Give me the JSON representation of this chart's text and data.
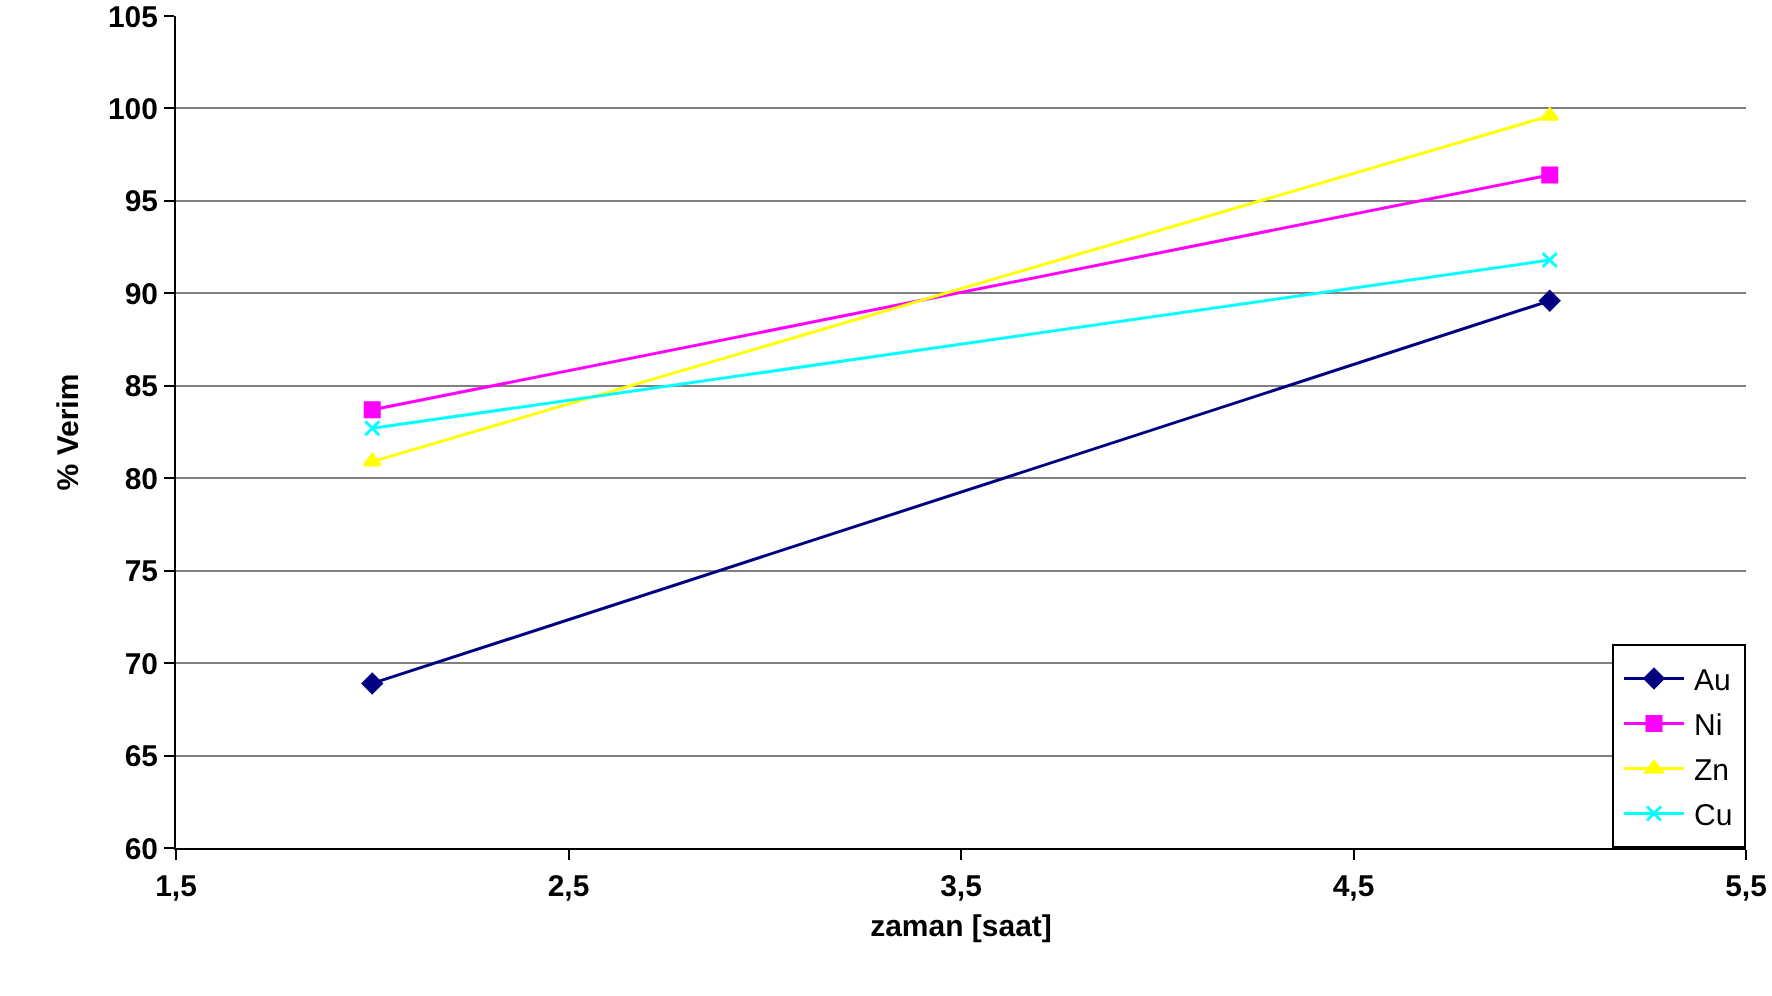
{
  "chart_data": {
    "type": "line",
    "xlabel": "zaman [saat]",
    "ylabel": "% Verim",
    "x": [
      2,
      5
    ],
    "series": [
      {
        "name": "Au",
        "color": "#000080",
        "values": [
          68.9,
          89.6
        ],
        "marker": "diamond"
      },
      {
        "name": "Ni",
        "color": "#ff00ff",
        "values": [
          83.7,
          96.4
        ],
        "marker": "square"
      },
      {
        "name": "Zn",
        "color": "#ffff00",
        "values": [
          80.9,
          99.6
        ],
        "marker": "triangle"
      },
      {
        "name": "Cu",
        "color": "#00ffff",
        "values": [
          82.7,
          91.8
        ],
        "marker": "cross"
      }
    ],
    "xlim": [
      1.5,
      5.5
    ],
    "xticks": [
      {
        "value": 1.5,
        "label": "1,5"
      },
      {
        "value": 2.5,
        "label": "2,5"
      },
      {
        "value": 3.5,
        "label": "3,5"
      },
      {
        "value": 4.5,
        "label": "4,5"
      },
      {
        "value": 5.5,
        "label": "5,5"
      }
    ],
    "ylim": [
      60,
      105
    ],
    "yticks": [
      60,
      65,
      70,
      75,
      80,
      85,
      90,
      95,
      100,
      105
    ],
    "grid": "y",
    "legend": "bottom right",
    "line_style": "solid"
  }
}
